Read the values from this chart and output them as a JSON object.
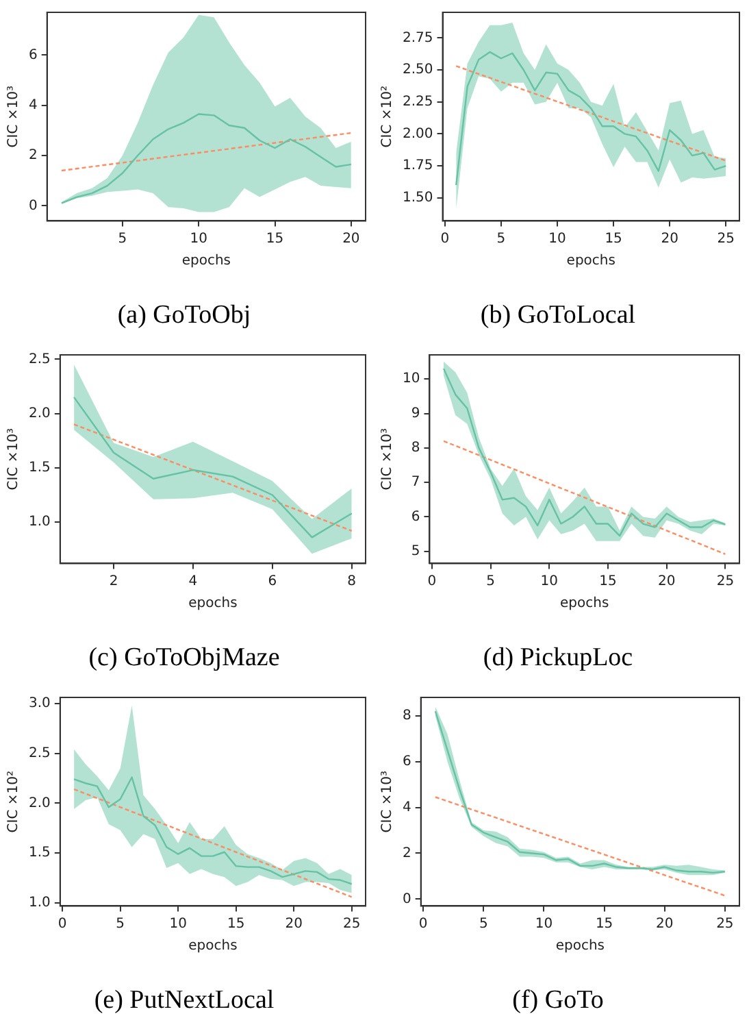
{
  "chart_data": [
    {
      "type": "line",
      "title": "(a) GoToObj",
      "xlabel": "epochs",
      "ylabel": "CIC ×10³",
      "x": [
        1,
        2,
        3,
        4,
        5,
        6,
        7,
        8,
        9,
        10,
        11,
        12,
        13,
        14,
        15,
        16,
        17,
        18,
        19,
        20
      ],
      "xlim": [
        0.05,
        20.95
      ],
      "xticks": [
        5,
        10,
        15,
        20
      ],
      "ylim": [
        -0.6,
        7.7
      ],
      "yticks": [
        0,
        2,
        4,
        6
      ],
      "grid": false,
      "legend": false,
      "marker": "none",
      "series": [
        {
          "color": "#66c2a5",
          "values": [
            0.1,
            0.35,
            0.5,
            0.8,
            1.3,
            2.0,
            2.65,
            3.05,
            3.3,
            3.65,
            3.6,
            3.2,
            3.1,
            2.6,
            2.3,
            2.65,
            2.35,
            1.95,
            1.55,
            1.65
          ],
          "upper": [
            0.15,
            0.5,
            0.7,
            1.1,
            2.0,
            3.3,
            4.8,
            6.1,
            6.7,
            7.6,
            7.5,
            6.5,
            5.6,
            4.9,
            3.95,
            4.3,
            3.55,
            3.1,
            2.3,
            2.55
          ],
          "lower": [
            0.1,
            0.3,
            0.4,
            0.55,
            0.6,
            0.65,
            0.5,
            -0.05,
            -0.1,
            -0.25,
            -0.25,
            -0.05,
            0.7,
            0.35,
            0.65,
            0.95,
            1.15,
            0.8,
            0.75,
            0.7
          ]
        },
        {
          "type": "line",
          "color": "#fc8d62",
          "line_style": "dashed",
          "x": [
            1,
            20
          ],
          "values": [
            1.4,
            2.9
          ]
        }
      ]
    },
    {
      "type": "line",
      "title": "(b) GoToLocal",
      "xlabel": "epochs",
      "ylabel": "CIC ×10²",
      "x": [
        1,
        2,
        3,
        4,
        5,
        6,
        7,
        8,
        9,
        10,
        11,
        12,
        13,
        14,
        15,
        16,
        17,
        18,
        19,
        20,
        21,
        22,
        23,
        24,
        25
      ],
      "xlim": [
        -0.2,
        26.2
      ],
      "xticks": [
        0,
        5,
        10,
        15,
        20,
        25
      ],
      "ylim": [
        1.32,
        2.95
      ],
      "yticks": [
        {
          "value": 1.5,
          "label": "1.50"
        },
        {
          "value": 1.75,
          "label": "1.75"
        },
        {
          "value": 2,
          "label": "2.00"
        },
        {
          "value": 2.25,
          "label": "2.25"
        },
        {
          "value": 2.5,
          "label": "2.50"
        },
        {
          "value": 2.75,
          "label": "2.75"
        }
      ],
      "grid": false,
      "legend": false,
      "marker": "none",
      "series": [
        {
          "color": "#66c2a5",
          "values": [
            1.6,
            2.37,
            2.58,
            2.64,
            2.59,
            2.63,
            2.5,
            2.34,
            2.48,
            2.47,
            2.34,
            2.29,
            2.2,
            2.06,
            2.06,
            2.0,
            1.98,
            1.87,
            1.71,
            2.03,
            1.95,
            1.83,
            1.85,
            1.72,
            1.75
          ],
          "upper": [
            1.85,
            2.55,
            2.72,
            2.85,
            2.85,
            2.87,
            2.63,
            2.5,
            2.7,
            2.55,
            2.5,
            2.4,
            2.25,
            2.22,
            2.39,
            2.05,
            2.17,
            2.02,
            1.87,
            2.24,
            2.26,
            2.0,
            2.03,
            1.82,
            1.81
          ],
          "lower": [
            1.41,
            2.2,
            2.45,
            2.43,
            2.33,
            2.4,
            2.4,
            2.23,
            2.25,
            2.4,
            2.2,
            2.2,
            2.13,
            1.92,
            1.74,
            1.9,
            1.78,
            1.78,
            1.58,
            1.8,
            1.62,
            1.66,
            1.65,
            1.66,
            1.67
          ]
        },
        {
          "type": "line",
          "color": "#fc8d62",
          "line_style": "dashed",
          "x": [
            1,
            25
          ],
          "values": [
            2.53,
            1.79
          ]
        }
      ]
    },
    {
      "type": "line",
      "title": "(c) GoToObjMaze",
      "xlabel": "epochs",
      "ylabel": "CIC ×10³",
      "x": [
        1,
        2,
        3,
        4,
        5,
        6,
        7,
        8
      ],
      "xlim": [
        0.65,
        8.35
      ],
      "xticks": [
        2,
        4,
        6,
        8
      ],
      "ylim": [
        0.62,
        2.54
      ],
      "yticks": [
        {
          "value": 1,
          "label": "1.0"
        },
        {
          "value": 1.5,
          "label": "1.5"
        },
        {
          "value": 2,
          "label": "2.0"
        },
        {
          "value": 2.5,
          "label": "2.5"
        }
      ],
      "grid": false,
      "legend": false,
      "marker": "none",
      "series": [
        {
          "color": "#66c2a5",
          "values": [
            2.15,
            1.64,
            1.4,
            1.48,
            1.42,
            1.25,
            0.86,
            1.08
          ],
          "upper": [
            2.45,
            1.73,
            1.6,
            1.74,
            1.56,
            1.38,
            1.03,
            1.31
          ],
          "lower": [
            1.85,
            1.55,
            1.21,
            1.22,
            1.27,
            1.12,
            0.71,
            0.85
          ]
        },
        {
          "type": "line",
          "color": "#fc8d62",
          "line_style": "dashed",
          "x": [
            1,
            8
          ],
          "values": [
            1.9,
            0.92
          ]
        }
      ]
    },
    {
      "type": "line",
      "title": "(d) PickupLoc",
      "xlabel": "epochs",
      "ylabel": "CIC ×10³",
      "x": [
        1,
        2,
        3,
        4,
        5,
        6,
        7,
        8,
        9,
        10,
        11,
        12,
        13,
        14,
        15,
        16,
        17,
        18,
        19,
        20,
        21,
        22,
        23,
        24,
        25
      ],
      "xlim": [
        -0.2,
        26.2
      ],
      "xticks": [
        0,
        5,
        10,
        15,
        20,
        25
      ],
      "ylim": [
        4.65,
        10.7
      ],
      "yticks": [
        5,
        6,
        7,
        8,
        9,
        10
      ],
      "grid": false,
      "legend": false,
      "marker": "none",
      "series": [
        {
          "color": "#66c2a5",
          "values": [
            10.3,
            9.55,
            9.15,
            8.0,
            7.3,
            6.5,
            6.55,
            6.3,
            5.75,
            6.5,
            5.8,
            6.0,
            6.3,
            5.8,
            5.8,
            5.45,
            6.1,
            5.8,
            5.7,
            6.1,
            5.9,
            5.7,
            5.7,
            5.9,
            5.78
          ],
          "upper": [
            10.5,
            10.2,
            9.6,
            8.3,
            7.4,
            6.9,
            7.4,
            6.6,
            6.2,
            6.85,
            6.1,
            6.45,
            6.85,
            6.3,
            6.3,
            5.6,
            6.3,
            6.0,
            5.95,
            6.3,
            6.0,
            5.85,
            5.9,
            5.95,
            5.82
          ],
          "lower": [
            10.1,
            8.95,
            8.7,
            7.8,
            7.1,
            6.1,
            5.75,
            6.0,
            5.35,
            5.9,
            5.5,
            5.6,
            5.8,
            5.3,
            5.3,
            5.3,
            5.8,
            5.45,
            5.4,
            5.9,
            5.8,
            5.6,
            5.5,
            5.8,
            5.75
          ]
        },
        {
          "type": "line",
          "color": "#fc8d62",
          "line_style": "dashed",
          "x": [
            1,
            25
          ],
          "values": [
            8.2,
            4.92
          ]
        }
      ]
    },
    {
      "type": "line",
      "title": "(e) PutNextLocal",
      "xlabel": "epochs",
      "ylabel": "CIC ×10²",
      "x": [
        1,
        2,
        3,
        4,
        5,
        6,
        7,
        8,
        9,
        10,
        11,
        12,
        13,
        14,
        15,
        16,
        17,
        18,
        19,
        20,
        21,
        22,
        23,
        24,
        25
      ],
      "xlim": [
        -0.2,
        26.2
      ],
      "xticks": [
        0,
        5,
        10,
        15,
        20,
        25
      ],
      "ylim": [
        0.97,
        3.06
      ],
      "yticks": [
        {
          "value": 1,
          "label": "1.0"
        },
        {
          "value": 1.5,
          "label": "1.5"
        },
        {
          "value": 2,
          "label": "2.0"
        },
        {
          "value": 2.5,
          "label": "2.5"
        },
        {
          "value": 3,
          "label": "3.0"
        }
      ],
      "grid": false,
      "legend": false,
      "marker": "none",
      "series": [
        {
          "color": "#66c2a5",
          "values": [
            2.24,
            2.2,
            2.17,
            1.96,
            2.04,
            2.26,
            1.87,
            1.78,
            1.56,
            1.49,
            1.55,
            1.47,
            1.47,
            1.51,
            1.37,
            1.36,
            1.36,
            1.32,
            1.26,
            1.29,
            1.32,
            1.31,
            1.24,
            1.23,
            1.19
          ],
          "upper": [
            2.54,
            2.39,
            2.27,
            2.13,
            2.35,
            2.98,
            2.08,
            1.94,
            1.78,
            1.6,
            1.81,
            1.64,
            1.64,
            1.77,
            1.58,
            1.49,
            1.45,
            1.4,
            1.33,
            1.42,
            1.45,
            1.4,
            1.29,
            1.34,
            1.28
          ],
          "lower": [
            1.94,
            2.03,
            2.06,
            1.79,
            1.73,
            1.56,
            1.69,
            1.64,
            1.35,
            1.4,
            1.29,
            1.34,
            1.29,
            1.26,
            1.17,
            1.21,
            1.28,
            1.24,
            1.23,
            1.17,
            1.21,
            1.21,
            1.2,
            1.13,
            1.1
          ]
        },
        {
          "type": "line",
          "color": "#fc8d62",
          "line_style": "dashed",
          "x": [
            1,
            25
          ],
          "values": [
            2.14,
            1.06
          ]
        }
      ]
    },
    {
      "type": "line",
      "title": "(f) GoTo",
      "xlabel": "epochs",
      "ylabel": "CIC ×10³",
      "x": [
        1,
        2,
        3,
        4,
        5,
        6,
        7,
        8,
        9,
        10,
        11,
        12,
        13,
        14,
        15,
        16,
        17,
        18,
        19,
        20,
        21,
        22,
        23,
        24,
        25
      ],
      "xlim": [
        -0.2,
        26.2
      ],
      "xticks": [
        0,
        5,
        10,
        15,
        20,
        25
      ],
      "ylim": [
        -0.3,
        8.8
      ],
      "yticks": [
        0,
        2,
        4,
        6,
        8
      ],
      "grid": false,
      "legend": false,
      "marker": "none",
      "series": [
        {
          "color": "#66c2a5",
          "values": [
            8.2,
            6.5,
            4.8,
            3.25,
            2.9,
            2.7,
            2.5,
            2.05,
            2.0,
            1.95,
            1.7,
            1.75,
            1.45,
            1.45,
            1.55,
            1.4,
            1.35,
            1.35,
            1.3,
            1.4,
            1.25,
            1.2,
            1.2,
            1.15,
            1.2
          ],
          "upper": [
            8.4,
            7.2,
            5.2,
            3.35,
            3.0,
            2.95,
            2.7,
            2.2,
            2.15,
            2.05,
            1.8,
            1.85,
            1.55,
            1.7,
            1.7,
            1.5,
            1.4,
            1.4,
            1.4,
            1.5,
            1.45,
            1.5,
            1.4,
            1.3,
            1.25
          ],
          "lower": [
            8.0,
            6.0,
            4.4,
            3.15,
            2.75,
            2.45,
            2.3,
            1.85,
            1.85,
            1.8,
            1.6,
            1.6,
            1.4,
            1.3,
            1.4,
            1.3,
            1.3,
            1.3,
            1.25,
            1.3,
            1.15,
            1.05,
            1.05,
            1.05,
            1.15
          ]
        },
        {
          "type": "line",
          "color": "#fc8d62",
          "line_style": "dashed",
          "x": [
            1,
            25
          ],
          "values": [
            4.45,
            0.15
          ]
        }
      ]
    }
  ]
}
